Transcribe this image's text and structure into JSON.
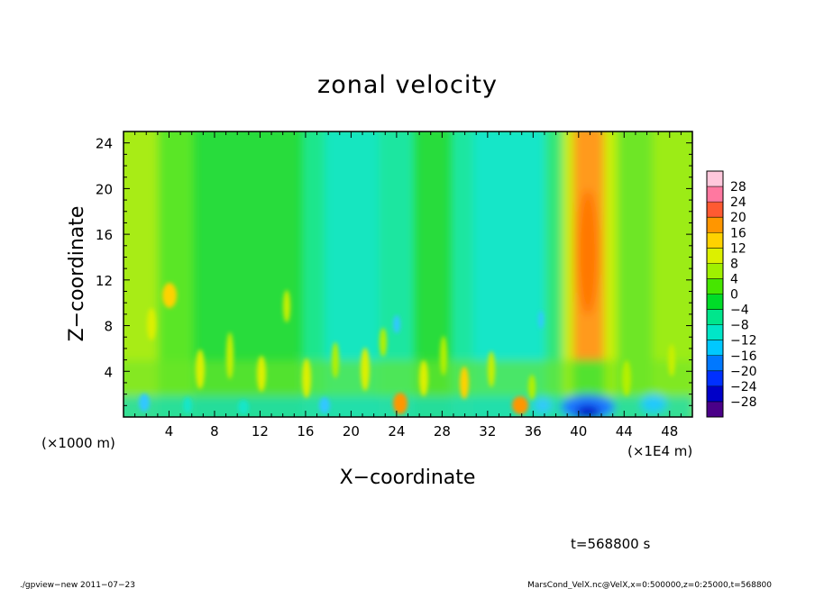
{
  "chart_data": {
    "type": "heatmap",
    "title": "zonal velocity",
    "xlabel": "X−coordinate",
    "ylabel": "Z−coordinate",
    "xunit": "(×1E4 m)",
    "yunit": "(×1000 m)",
    "xlim": [
      0,
      50
    ],
    "ylim": [
      0,
      25
    ],
    "xticks": [
      4,
      8,
      12,
      16,
      20,
      24,
      28,
      32,
      36,
      40,
      44,
      48
    ],
    "yticks": [
      4,
      8,
      12,
      16,
      20,
      24
    ],
    "colorbar": {
      "levels": [
        -28,
        -24,
        -20,
        -16,
        -12,
        -8,
        -4,
        0,
        4,
        8,
        12,
        16,
        20,
        24,
        28
      ],
      "labels": [
        "28",
        "24",
        "20",
        "16",
        "12",
        "8",
        "4",
        "0",
        "−4",
        "−8",
        "−12",
        "−16",
        "−20",
        "−24",
        "−28"
      ],
      "colors": [
        "#4a0088",
        "#0000c8",
        "#0030ff",
        "#0078ff",
        "#00c8ff",
        "#00e6c8",
        "#00e68c",
        "#00dc28",
        "#46e600",
        "#a0f000",
        "#dcf000",
        "#ffd200",
        "#ff9600",
        "#ff5a32",
        "#ff78a0",
        "#ffc8dc"
      ]
    },
    "features": [
      {
        "x": 41,
        "z_range": [
          4,
          25
        ],
        "value": 20,
        "note": "warm vertical plume"
      },
      {
        "x": 41,
        "z_range": [
          0,
          2
        ],
        "value": -22,
        "note": "cold surface pocket"
      },
      {
        "x": 21,
        "z_range": [
          0,
          25
        ],
        "value": -8,
        "note": "cyan band"
      },
      {
        "x": 33,
        "z_range": [
          0,
          25
        ],
        "value": -8,
        "note": "cyan band"
      }
    ],
    "annotation": "t=568800 s"
  },
  "footer": {
    "left": "./gpview−new   2011−07−23",
    "right": "MarsCond_VelX.nc@VelX,x=0:500000,z=0:25000,t=568800"
  }
}
